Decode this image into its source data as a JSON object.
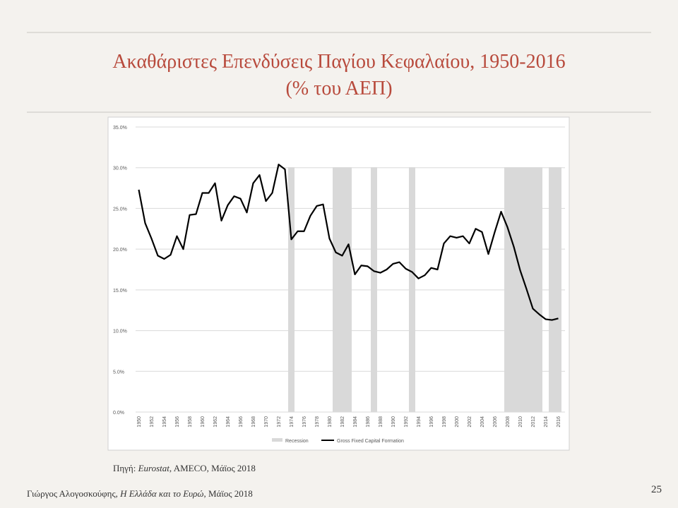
{
  "slide": {
    "source": {
      "prefix": "Πηγή: ",
      "italic": "Eurostat",
      "rest": ", AMECO, Μάϊος 2018"
    },
    "footer": {
      "prefix": "Γιώργος Αλογοσκούφης, ",
      "italic": "Η Ελλάδα και το Ευρώ",
      "rest": ", Μάϊος 2018"
    },
    "page_number": "25"
  },
  "chart_data": {
    "type": "line",
    "title": "Ακαθάριστες Επενδύσεις Παγίου Κεφαλαίου, 1950-2016",
    "subtitle": "(% του ΑΕΠ)",
    "x": [
      1950,
      1951,
      1952,
      1953,
      1954,
      1955,
      1956,
      1957,
      1958,
      1959,
      1960,
      1961,
      1962,
      1963,
      1964,
      1965,
      1966,
      1967,
      1968,
      1969,
      1970,
      1971,
      1972,
      1973,
      1974,
      1975,
      1976,
      1977,
      1978,
      1979,
      1980,
      1981,
      1982,
      1983,
      1984,
      1985,
      1986,
      1987,
      1988,
      1989,
      1990,
      1991,
      1992,
      1993,
      1994,
      1995,
      1996,
      1997,
      1998,
      1999,
      2000,
      2001,
      2002,
      2003,
      2004,
      2005,
      2006,
      2007,
      2008,
      2009,
      2010,
      2011,
      2012,
      2013,
      2014,
      2015,
      2016
    ],
    "series": [
      {
        "name": "Gross Fixed Capital Formation",
        "color": "#000000",
        "values": [
          27.3,
          23.2,
          21.3,
          19.2,
          18.8,
          19.3,
          21.6,
          20.0,
          24.2,
          24.3,
          26.9,
          26.9,
          28.1,
          23.5,
          25.4,
          26.5,
          26.2,
          24.5,
          28.1,
          29.1,
          25.9,
          26.9,
          30.4,
          29.8,
          21.2,
          22.2,
          22.2,
          24.1,
          25.3,
          25.5,
          21.3,
          19.6,
          19.2,
          20.6,
          16.9,
          18.0,
          17.9,
          17.3,
          17.1,
          17.5,
          18.2,
          18.4,
          17.6,
          17.2,
          16.4,
          16.8,
          17.7,
          17.5,
          20.7,
          21.6,
          21.4,
          21.6,
          20.7,
          22.5,
          22.1,
          19.4,
          22.1,
          24.6,
          22.7,
          20.3,
          17.4,
          15.1,
          12.7,
          12.0,
          11.4,
          11.3,
          11.5
        ]
      }
    ],
    "recessions": {
      "name": "Recession",
      "color": "#d9d9d9",
      "periods": [
        [
          1973.5,
          1974.5
        ],
        [
          1980.5,
          1983.5
        ],
        [
          1986.5,
          1987.5
        ],
        [
          1992.5,
          1993.5
        ],
        [
          2007.5,
          2013.5
        ],
        [
          2014.5,
          2016.5
        ]
      ]
    },
    "xlim": [
      1949.5,
      2016.5
    ],
    "xticks": [
      1950,
      1952,
      1954,
      1956,
      1958,
      1960,
      1962,
      1964,
      1966,
      1968,
      1970,
      1972,
      1974,
      1976,
      1978,
      1980,
      1982,
      1984,
      1986,
      1988,
      1990,
      1992,
      1994,
      1996,
      1998,
      2000,
      2002,
      2004,
      2006,
      2008,
      2010,
      2012,
      2014,
      2016
    ],
    "ylim": [
      0,
      35
    ],
    "yticks": [
      {
        "value": 0,
        "label": "0.0%"
      },
      {
        "value": 5,
        "label": "5.0%"
      },
      {
        "value": 10,
        "label": "10.0%"
      },
      {
        "value": 15,
        "label": "15.0%"
      },
      {
        "value": 20,
        "label": "20.0%"
      },
      {
        "value": 25,
        "label": "25.0%"
      },
      {
        "value": 30,
        "label": "30.0%"
      },
      {
        "value": 35,
        "label": "35.0%"
      }
    ],
    "grid": true
  }
}
